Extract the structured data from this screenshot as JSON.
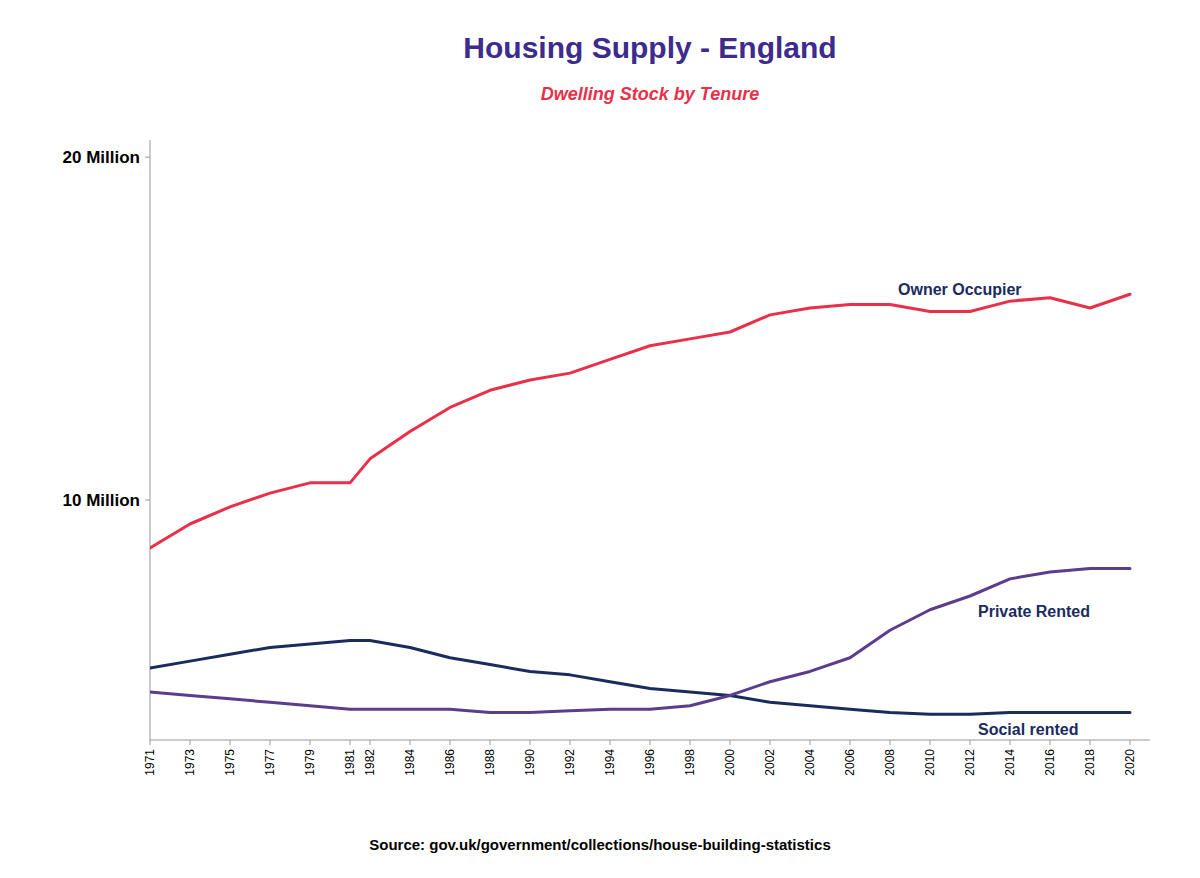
{
  "chart_data": {
    "type": "line",
    "title": "Housing Supply - England",
    "subtitle": "Dwelling Stock by Tenure",
    "source": "Source: gov.uk/government/collections/house-building-statistics",
    "title_color": "#3d2b8e",
    "subtitle_color": "#e8304a",
    "x": [
      1971,
      1973,
      1975,
      1977,
      1979,
      1981,
      1982,
      1984,
      1986,
      1988,
      1990,
      1992,
      1994,
      1996,
      1998,
      2000,
      2002,
      2004,
      2006,
      2008,
      2010,
      2012,
      2014,
      2016,
      2018,
      2020
    ],
    "series": [
      {
        "name": "Owner Occupier",
        "color": "#e8304a",
        "values": [
          8.6,
          9.3,
          9.8,
          10.2,
          10.5,
          10.5,
          11.2,
          12.0,
          12.7,
          13.2,
          13.5,
          13.7,
          14.1,
          14.5,
          14.7,
          14.9,
          15.4,
          15.6,
          15.7,
          15.7,
          15.5,
          15.5,
          15.8,
          15.9,
          15.6,
          16.0
        ]
      },
      {
        "name": "Social rented",
        "color": "#1a2b5e",
        "values": [
          5.1,
          5.3,
          5.5,
          5.7,
          5.8,
          5.9,
          5.9,
          5.7,
          5.4,
          5.2,
          5.0,
          4.9,
          4.7,
          4.5,
          4.4,
          4.3,
          4.1,
          4.0,
          3.9,
          3.8,
          3.75,
          3.75,
          3.8,
          3.8,
          3.8,
          3.8
        ]
      },
      {
        "name": "Private Rented",
        "color": "#5b3d8e",
        "values": [
          4.4,
          4.3,
          4.2,
          4.1,
          4.0,
          3.9,
          3.9,
          3.9,
          3.9,
          3.8,
          3.8,
          3.85,
          3.9,
          3.9,
          4.0,
          4.3,
          4.7,
          5.0,
          5.4,
          6.2,
          6.8,
          7.2,
          7.7,
          7.9,
          8.0,
          8.0
        ]
      }
    ],
    "xlim": [
      1971,
      2021
    ],
    "xticks": [
      1971,
      1973,
      1975,
      1977,
      1979,
      1981,
      1982,
      1984,
      1986,
      1988,
      1990,
      1992,
      1994,
      1996,
      1998,
      2000,
      2002,
      2004,
      2006,
      2008,
      2010,
      2012,
      2014,
      2016,
      2018,
      2020
    ],
    "ylim": [
      3.0,
      20.5
    ],
    "yticks": [
      {
        "value": 10,
        "label": "10  Million"
      },
      {
        "value": 20,
        "label": "20  Million"
      }
    ],
    "grid": false
  }
}
